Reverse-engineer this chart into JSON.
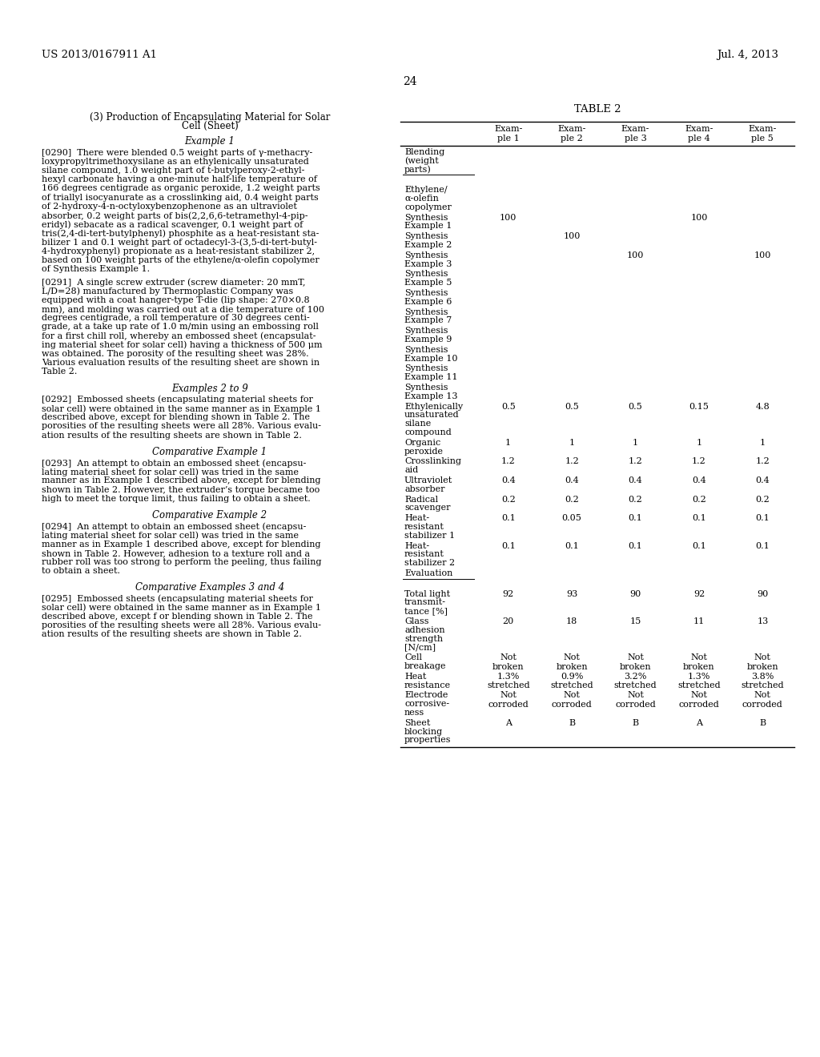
{
  "page_number": "24",
  "patent_number": "US 2013/0167911 A1",
  "patent_date": "Jul. 4, 2013",
  "left_title_line1": "(3) Production of Encapsulating Material for Solar",
  "left_title_line2": "Cell (Sheet)",
  "table_title": "TABLE 2",
  "col_headers": [
    "Exam-\nple 1",
    "Exam-\nple 2",
    "Exam-\nple 3",
    "Exam-\nple 4",
    "Exam-\nple 5"
  ],
  "left_paragraphs": [
    {
      "heading": null,
      "lines": []
    },
    {
      "heading": "Example 1",
      "lines": []
    },
    {
      "tag": "[0290]",
      "lines": [
        "   There were blended 0.5 weight parts of γ-methacry-",
        "loxypropyltrimethoxysilane as an ethylenically unsaturated",
        "silane compound, 1.0 weight part of t-butylperoxy-2-ethyl-",
        "hexyl carbonate having a one-minute half-life temperature of",
        "166 degrees centigrade as organic peroxide, 1.2 weight parts",
        "of triallyl isocyanurate as a crosslinking aid, 0.4 weight parts",
        "of 2-hydroxy-4-n-octyloxybenzophenone as an ultraviolet",
        "absorber, 0.2 weight parts of bis(2,2,6,6-tetramethyl-4-pip-",
        "eridyl) sebacate as a radical scavenger, 0.1 weight part of",
        "tris(2,4-di-tert-butylphenyl) phosphite as a heat-resistant sta-",
        "bilizer 1 and 0.1 weight part of octadecyl-3-(3,5-di-tert-butyl-",
        "4-hydroxyphenyl) propionate as a heat-resistant stabilizer 2,",
        "based on 100 weight parts of the ethylene/α-olefin copolymer",
        "of Synthesis Example 1."
      ]
    },
    {
      "tag": "[0291]",
      "lines": [
        "   A single screw extruder (screw diameter: 20 mmT,",
        "L/D=28) manufactured by Thermoplastic Company was",
        "equipped with a coat hanger-type T-die (lip shape: 270×0.8",
        "mm), and molding was carried out at a die temperature of 100",
        "degrees centigrade, a roll temperature of 30 degrees centi-",
        "grade, at a take up rate of 1.0 m/min using an embossing roll",
        "for a first chill roll, whereby an embossed sheet (encapsulat-",
        "ing material sheet for solar cell) having a thickness of 500 μm",
        "was obtained. The porosity of the resulting sheet was 28%.",
        "Various evaluation results of the resulting sheet are shown in",
        "Table 2."
      ]
    },
    {
      "heading": "Examples 2 to 9",
      "lines": []
    },
    {
      "tag": "[0292]",
      "lines": [
        "   Embossed sheets (encapsulating material sheets for",
        "solar cell) were obtained in the same manner as in Example 1",
        "described above, except for blending shown in Table 2. The",
        "porosities of the resulting sheets were all 28%. Various evalu-",
        "ation results of the resulting sheets are shown in Table 2."
      ]
    },
    {
      "heading": "Comparative Example 1",
      "lines": []
    },
    {
      "tag": "[0293]",
      "lines": [
        "   An attempt to obtain an embossed sheet (encapsu-",
        "lating material sheet for solar cell) was tried in the same",
        "manner as in Example 1 described above, except for blending",
        "shown in Table 2. However, the extruder’s torque became too",
        "high to meet the torque limit, thus failing to obtain a sheet."
      ]
    },
    {
      "heading": "Comparative Example 2",
      "lines": []
    },
    {
      "tag": "[0294]",
      "lines": [
        "   An attempt to obtain an embossed sheet (encapsu-",
        "lating material sheet for solar cell) was tried in the same",
        "manner as in Example 1 described above, except for blending",
        "shown in Table 2. However, adhesion to a texture roll and a",
        "rubber roll was too strong to perform the peeling, thus failing",
        "to obtain a sheet."
      ]
    },
    {
      "heading": "Comparative Examples 3 and 4",
      "lines": []
    },
    {
      "tag": "[0295]",
      "lines": [
        "   Embossed sheets (encapsulating material sheets for",
        "solar cell) were obtained in the same manner as in Example 1",
        "described above, except f or blending shown in Table 2. The",
        "porosities of the resulting sheets were all 28%. Various evalu-",
        "ation results of the resulting sheets are shown in Table 2."
      ]
    }
  ],
  "table_rows": [
    {
      "label": [
        "Blending",
        "(weight",
        "parts)"
      ],
      "values": [
        "",
        "",
        "",
        "",
        ""
      ],
      "underline_label": true,
      "gap_before": false
    },
    {
      "label": [
        ""
      ],
      "values": [
        "",
        "",
        "",
        "",
        ""
      ],
      "underline_label": false,
      "gap_before": false
    },
    {
      "label": [
        "Ethylene/",
        "α-olefin",
        "copolymer"
      ],
      "values": [
        "",
        "",
        "",
        "",
        ""
      ],
      "underline_label": false,
      "gap_before": false
    },
    {
      "label": [
        "Synthesis",
        "Example 1"
      ],
      "values": [
        "100",
        "",
        "",
        "100",
        ""
      ],
      "underline_label": false,
      "gap_before": false
    },
    {
      "label": [
        "Synthesis",
        "Example 2"
      ],
      "values": [
        "",
        "100",
        "",
        "",
        ""
      ],
      "underline_label": false,
      "gap_before": false
    },
    {
      "label": [
        "Synthesis",
        "Example 3"
      ],
      "values": [
        "",
        "",
        "100",
        "",
        "100"
      ],
      "underline_label": false,
      "gap_before": false
    },
    {
      "label": [
        "Synthesis",
        "Example 5"
      ],
      "values": [
        "",
        "",
        "",
        "",
        ""
      ],
      "underline_label": false,
      "gap_before": false
    },
    {
      "label": [
        "Synthesis",
        "Example 6"
      ],
      "values": [
        "",
        "",
        "",
        "",
        ""
      ],
      "underline_label": false,
      "gap_before": false
    },
    {
      "label": [
        "Synthesis",
        "Example 7"
      ],
      "values": [
        "",
        "",
        "",
        "",
        ""
      ],
      "underline_label": false,
      "gap_before": false
    },
    {
      "label": [
        "Synthesis",
        "Example 9"
      ],
      "values": [
        "",
        "",
        "",
        "",
        ""
      ],
      "underline_label": false,
      "gap_before": false
    },
    {
      "label": [
        "Synthesis",
        "Example 10"
      ],
      "values": [
        "",
        "",
        "",
        "",
        ""
      ],
      "underline_label": false,
      "gap_before": false
    },
    {
      "label": [
        "Synthesis",
        "Example 11"
      ],
      "values": [
        "",
        "",
        "",
        "",
        ""
      ],
      "underline_label": false,
      "gap_before": false
    },
    {
      "label": [
        "Synthesis",
        "Example 13"
      ],
      "values": [
        "",
        "",
        "",
        "",
        ""
      ],
      "underline_label": false,
      "gap_before": false
    },
    {
      "label": [
        "Ethylenically",
        "unsaturated",
        "silane",
        "compound"
      ],
      "values": [
        "0.5",
        "0.5",
        "0.5",
        "0.15",
        "4.8"
      ],
      "underline_label": false,
      "gap_before": false
    },
    {
      "label": [
        "Organic",
        "peroxide"
      ],
      "values": [
        "1",
        "1",
        "1",
        "1",
        "1"
      ],
      "underline_label": false,
      "gap_before": false
    },
    {
      "label": [
        "Crosslinking",
        "aid"
      ],
      "values": [
        "1.2",
        "1.2",
        "1.2",
        "1.2",
        "1.2"
      ],
      "underline_label": false,
      "gap_before": false
    },
    {
      "label": [
        "Ultraviolet",
        "absorber"
      ],
      "values": [
        "0.4",
        "0.4",
        "0.4",
        "0.4",
        "0.4"
      ],
      "underline_label": false,
      "gap_before": false
    },
    {
      "label": [
        "Radical",
        "scavenger"
      ],
      "values": [
        "0.2",
        "0.2",
        "0.2",
        "0.2",
        "0.2"
      ],
      "underline_label": false,
      "gap_before": false
    },
    {
      "label": [
        "Heat-",
        "resistant",
        "stabilizer 1"
      ],
      "values": [
        "0.1",
        "0.05",
        "0.1",
        "0.1",
        "0.1"
      ],
      "underline_label": false,
      "gap_before": false
    },
    {
      "label": [
        "Heat-",
        "resistant",
        "stabilizer 2"
      ],
      "values": [
        "0.1",
        "0.1",
        "0.1",
        "0.1",
        "0.1"
      ],
      "underline_label": false,
      "gap_before": false
    },
    {
      "label": [
        "Evaluation"
      ],
      "values": [
        "",
        "",
        "",
        "",
        ""
      ],
      "underline_label": true,
      "gap_before": false
    },
    {
      "label": [
        ""
      ],
      "values": [
        "",
        "",
        "",
        "",
        ""
      ],
      "underline_label": false,
      "gap_before": false
    },
    {
      "label": [
        "Total light",
        "transmit-",
        "tance [%]"
      ],
      "values": [
        "92",
        "93",
        "90",
        "92",
        "90"
      ],
      "underline_label": false,
      "gap_before": false
    },
    {
      "label": [
        "Glass",
        "adhesion",
        "strength",
        "[N/cm]"
      ],
      "values": [
        "20",
        "18",
        "15",
        "11",
        "13"
      ],
      "underline_label": false,
      "gap_before": false
    },
    {
      "label": [
        "Cell",
        "breakage"
      ],
      "values": [
        "Not\nbroken",
        "Not\nbroken",
        "Not\nbroken",
        "Not\nbroken",
        "Not\nbroken"
      ],
      "underline_label": false,
      "gap_before": false
    },
    {
      "label": [
        "Heat",
        "resistance"
      ],
      "values": [
        "1.3%\nstretched",
        "0.9%\nstretched",
        "3.2%\nstretched",
        "1.3%\nstretched",
        "3.8%\nstretched"
      ],
      "underline_label": false,
      "gap_before": false
    },
    {
      "label": [
        "Electrode",
        "corrosive-",
        "ness"
      ],
      "values": [
        "Not\ncorroded",
        "Not\ncorroded",
        "Not\ncorroded",
        "Not\ncorroded",
        "Not\ncorroded"
      ],
      "underline_label": false,
      "gap_before": false
    },
    {
      "label": [
        "Sheet",
        "blocking",
        "properties"
      ],
      "values": [
        "A",
        "B",
        "B",
        "A",
        "B"
      ],
      "underline_label": false,
      "gap_before": false
    }
  ]
}
